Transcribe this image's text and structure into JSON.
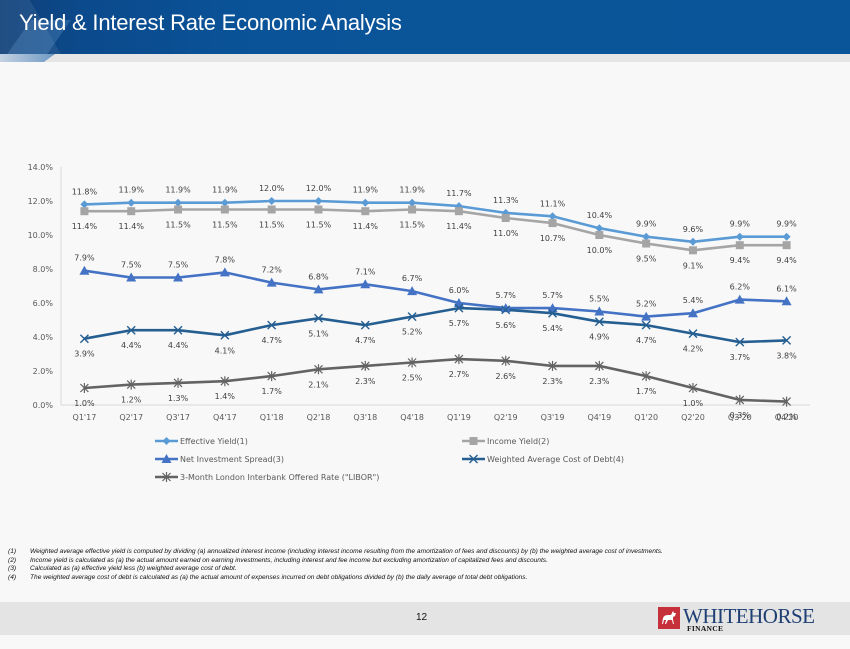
{
  "header": {
    "title": "Yield & Interest Rate Economic Analysis"
  },
  "chart_data": {
    "type": "line",
    "title": "",
    "xlabel": "",
    "ylabel": "",
    "ylim": [
      0,
      14
    ],
    "y_ticks": [
      "0.0%",
      "2.0%",
      "4.0%",
      "6.0%",
      "8.0%",
      "10.0%",
      "12.0%",
      "14.0%"
    ],
    "grid": false,
    "legend_position": "bottom",
    "categories": [
      "Q1'17",
      "Q2'17",
      "Q3'17",
      "Q4'17",
      "Q1'18",
      "Q2'18",
      "Q3'18",
      "Q4'18",
      "Q1'19",
      "Q2'19",
      "Q3'19",
      "Q4'19",
      "Q1'20",
      "Q2'20",
      "Q3'20",
      "Q4'20"
    ],
    "series": [
      {
        "name": "Effective Yield(1)",
        "color": "#5b9bd5",
        "marker": "diamond",
        "label_position": "above",
        "values": [
          11.8,
          11.9,
          11.9,
          11.9,
          12.0,
          12.0,
          11.9,
          11.9,
          11.7,
          11.3,
          11.1,
          10.4,
          9.9,
          9.6,
          9.9,
          9.9
        ]
      },
      {
        "name": "Income Yield(2)",
        "color": "#a5a5a5",
        "marker": "square",
        "label_position": "below",
        "values": [
          11.4,
          11.4,
          11.5,
          11.5,
          11.5,
          11.5,
          11.4,
          11.5,
          11.4,
          11.0,
          10.7,
          10.0,
          9.5,
          9.1,
          9.4,
          9.4
        ]
      },
      {
        "name": "Net Investment Spread(3)",
        "color": "#4472c4",
        "marker": "triangle",
        "label_position": "above",
        "values": [
          7.9,
          7.5,
          7.5,
          7.8,
          7.2,
          6.8,
          7.1,
          6.7,
          6.0,
          5.7,
          5.7,
          5.5,
          5.2,
          5.4,
          6.2,
          6.1
        ]
      },
      {
        "name": "Weighted Average Cost of Debt(4)",
        "color": "#255e91",
        "marker": "x",
        "label_position": "below",
        "values": [
          3.9,
          4.4,
          4.4,
          4.1,
          4.7,
          5.1,
          4.7,
          5.2,
          5.7,
          5.6,
          5.4,
          4.9,
          4.7,
          4.2,
          3.7,
          3.8
        ]
      },
      {
        "name": "3-Month London Interbank Offered Rate (\"LIBOR\")",
        "color": "#636363",
        "marker": "star",
        "label_position": "below",
        "values": [
          1.0,
          1.2,
          1.3,
          1.4,
          1.7,
          2.1,
          2.3,
          2.5,
          2.7,
          2.6,
          2.3,
          2.3,
          1.7,
          1.0,
          0.3,
          0.2
        ]
      }
    ]
  },
  "footnotes": [
    {
      "num": "(1)",
      "text": "Weighted average effective yield is computed by dividing (a) annualized interest income (including interest income resulting from the amortization of fees and discounts) by (b) the weighted average cost of investments."
    },
    {
      "num": "(2)",
      "text": "Income yield is calculated as (a) the actual amount earned on earning investments, including interest and fee income but excluding amortization of capitalized fees and discounts."
    },
    {
      "num": "(3)",
      "text": "Calculated as (a) effective yield less (b) weighted average cost of debt."
    },
    {
      "num": "(4)",
      "text": "The weighted average cost of debt is calculated as (a) the actual amount of expenses incurred on debt obligations divided by (b) the daily average of total debt obligations."
    }
  ],
  "footer": {
    "page_number": "12",
    "logo_main": "WHITEHORSE",
    "logo_sub": "FINANCE",
    "logo_icon": "horse-icon",
    "logo_color": "#c6303a"
  }
}
